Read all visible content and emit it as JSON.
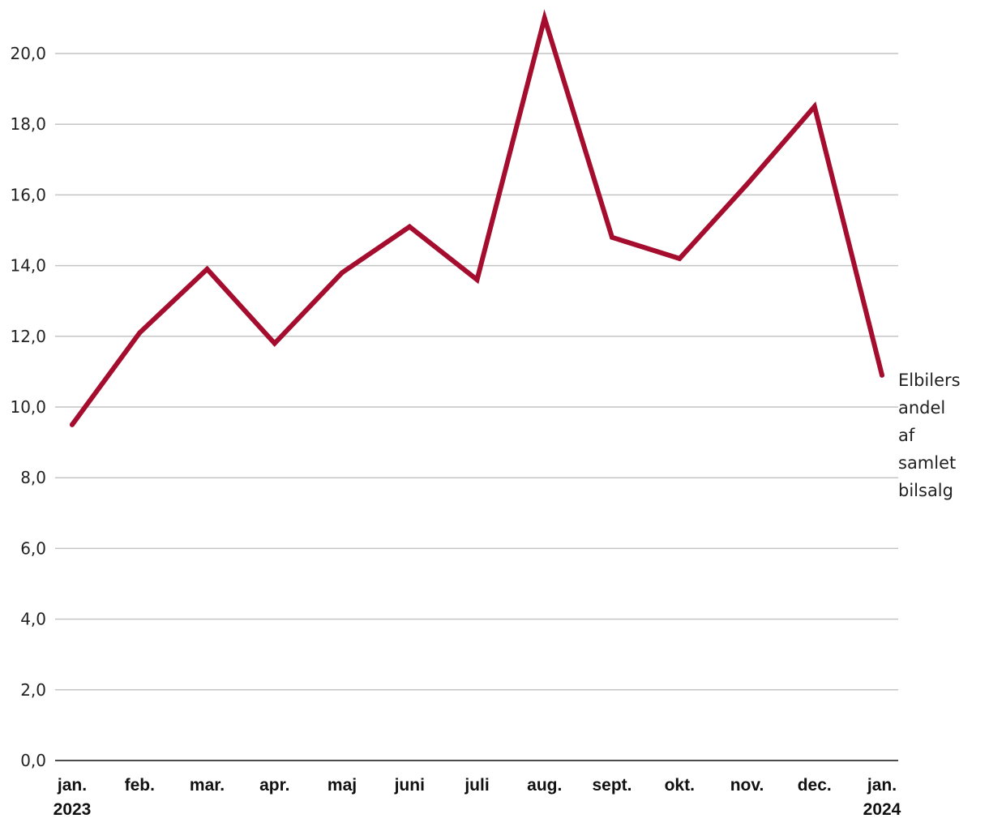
{
  "chart_data": {
    "type": "line",
    "title": "",
    "xlabel": "",
    "ylabel": "",
    "categories": [
      [
        "jan.",
        "2023"
      ],
      [
        "feb."
      ],
      [
        "mar."
      ],
      [
        "apr."
      ],
      [
        "maj"
      ],
      [
        "juni"
      ],
      [
        "juli"
      ],
      [
        "aug."
      ],
      [
        "sept."
      ],
      [
        "okt."
      ],
      [
        "nov."
      ],
      [
        "dec."
      ],
      [
        "jan.",
        "2024"
      ]
    ],
    "series": [
      {
        "name": "Elbilers andel af samlet bilsalg",
        "label_lines": [
          "Elbilers",
          "andel",
          "af",
          "samlet",
          "bilsalg"
        ],
        "color": "#a50d2f",
        "values": [
          9.5,
          12.1,
          13.9,
          11.8,
          13.8,
          15.1,
          13.6,
          21.0,
          14.8,
          14.2,
          16.3,
          18.5,
          10.9
        ]
      }
    ],
    "ylim": [
      0,
      20
    ],
    "yticks": [
      "0,0",
      "2,0",
      "4,0",
      "6,0",
      "8,0",
      "10,0",
      "12,0",
      "14,0",
      "16,0",
      "18,0",
      "20,0"
    ],
    "ytick_values": [
      0,
      2,
      4,
      6,
      8,
      10,
      12,
      14,
      16,
      18,
      20
    ],
    "grid": true,
    "legend": "none"
  }
}
